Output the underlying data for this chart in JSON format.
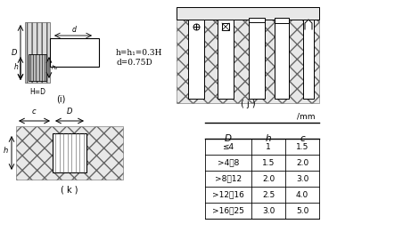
{
  "background": "#ffffff",
  "title_i": "(i)",
  "title_j": "( j )",
  "title_k": "( k )",
  "formula_text": "h=h₁=0.3H\nd=0.75D",
  "table_unit": "/mm",
  "table_headers": [
    "D",
    "h",
    "c"
  ],
  "table_rows": [
    [
      "≤4",
      "1",
      "1.5"
    ],
    [
      ">4～8",
      "1.5",
      "2.0"
    ],
    [
      ">8～12",
      "2.0",
      "3.0"
    ],
    [
      ">12～16",
      "2.5",
      "4.0"
    ],
    [
      ">16～25",
      "3.0",
      "5.0"
    ]
  ]
}
